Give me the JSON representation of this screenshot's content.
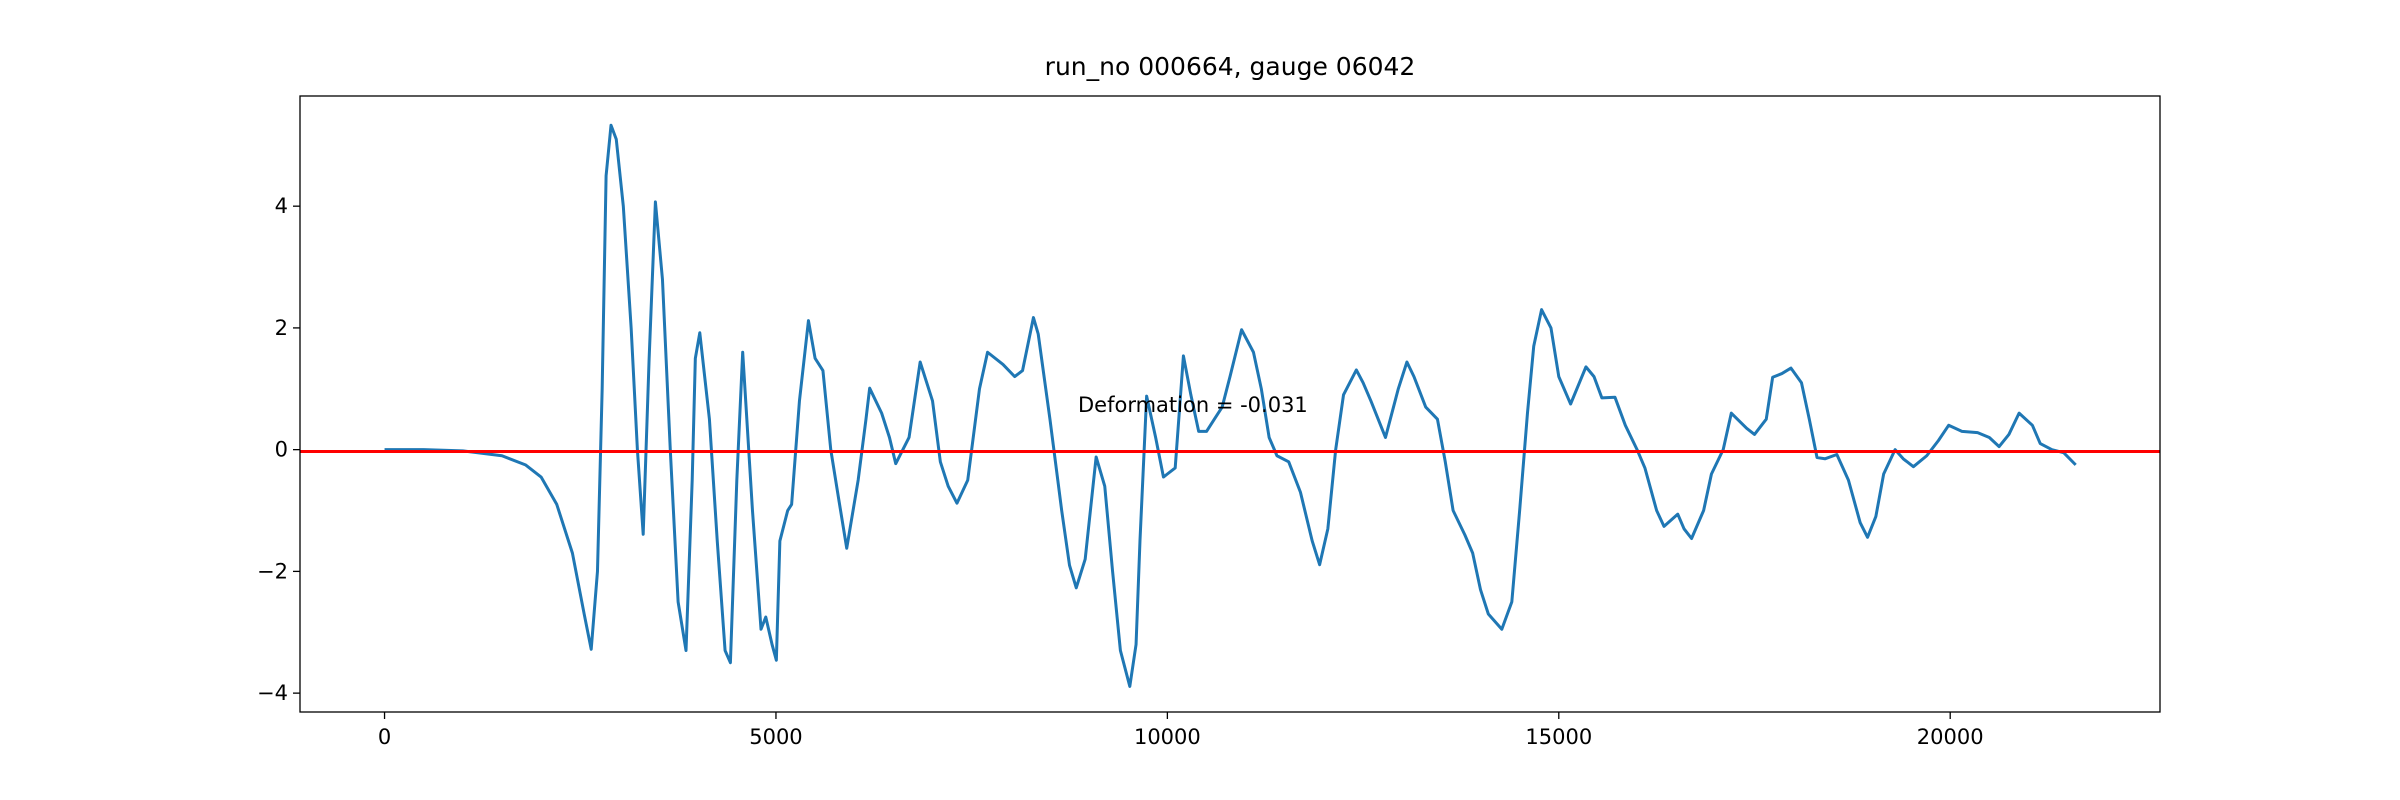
{
  "chart_data": {
    "type": "line",
    "title": "run_no 000664, gauge 06042",
    "annotation": "Deformation = -0.031",
    "hline": {
      "value": -0.031,
      "color": "#ff0000"
    },
    "xlim": [
      -1080,
      22680
    ],
    "ylim": [
      -4.31,
      5.81
    ],
    "xticks": [
      0,
      5000,
      10000,
      15000,
      20000
    ],
    "yticks": [
      {
        "value": -4,
        "label": "−4"
      },
      {
        "value": -2,
        "label": "−2"
      },
      0,
      2,
      4
    ],
    "x": [
      0,
      500,
      1000,
      1500,
      1800,
      2000,
      2200,
      2400,
      2550,
      2640,
      2720,
      2780,
      2830,
      2893,
      2960,
      3050,
      3150,
      3230,
      3304,
      3380,
      3460,
      3550,
      3650,
      3750,
      3851,
      3930,
      3970,
      4027,
      4150,
      4250,
      4350,
      4418,
      4500,
      4575,
      4700,
      4809,
      4870,
      4950,
      5005,
      5050,
      5150,
      5200,
      5300,
      5415,
      5500,
      5600,
      5700,
      5800,
      5904,
      6050,
      6150,
      6197,
      6350,
      6450,
      6530,
      6700,
      6842,
      7000,
      7100,
      7200,
      7312,
      7450,
      7600,
      7703,
      7900,
      8050,
      8150,
      8289,
      8350,
      8500,
      8650,
      8750,
      8836,
      8950,
      9000,
      9090,
      9200,
      9300,
      9400,
      9520,
      9600,
      9650,
      9735,
      9850,
      9950,
      10000,
      10100,
      10205,
      10300,
      10400,
      10500,
      10600,
      10700,
      10800,
      10948,
      11100,
      11200,
      11300,
      11400,
      11550,
      11700,
      11850,
      11945,
      12050,
      12150,
      12250,
      12414,
      12500,
      12600,
      12786,
      12950,
      13060,
      13150,
      13300,
      13450,
      13550,
      13650,
      13800,
      13900,
      14000,
      14100,
      14272,
      14400,
      14500,
      14600,
      14680,
      14780,
      14900,
      15000,
      15151,
      15347,
      15450,
      15550,
      15718,
      15850,
      16000,
      16100,
      16250,
      16344,
      16520,
      16600,
      16696,
      16850,
      16950,
      17100,
      17204,
      17400,
      17500,
      17650,
      17732,
      17850,
      17966,
      18100,
      18200,
      18299,
      18400,
      18552,
      18700,
      18850,
      18944,
      19050,
      19150,
      19296,
      19400,
      19530,
      19700,
      19850,
      19980,
      20150,
      20350,
      20500,
      20625,
      20750,
      20880,
      21050,
      21150,
      21300,
      21450,
      21603
    ],
    "series": [
      {
        "color": "#1f77b4",
        "values": [
          0,
          0,
          -0.02,
          -0.1,
          -0.25,
          -0.45,
          -0.9,
          -1.7,
          -2.7,
          -3.28,
          -2.0,
          1.0,
          4.5,
          5.33,
          5.1,
          4.0,
          2.0,
          0,
          -1.39,
          1.5,
          4.07,
          2.8,
          0,
          -2.5,
          -3.3,
          -0.5,
          1.5,
          1.92,
          0.5,
          -1.5,
          -3.3,
          -3.5,
          -0.5,
          1.6,
          -1.0,
          -2.95,
          -2.75,
          -3.2,
          -3.46,
          -1.5,
          -1.0,
          -0.9,
          0.8,
          2.12,
          1.5,
          1.3,
          0,
          -0.8,
          -1.62,
          -0.5,
          0.5,
          1.01,
          0.6,
          0.2,
          -0.23,
          0.2,
          1.44,
          0.8,
          -0.2,
          -0.6,
          -0.88,
          -0.5,
          1.0,
          1.6,
          1.4,
          1.2,
          1.3,
          2.17,
          1.9,
          0.5,
          -1.0,
          -1.9,
          -2.27,
          -1.8,
          -1.2,
          -0.12,
          -0.6,
          -2.0,
          -3.3,
          -3.89,
          -3.2,
          -1.5,
          0.88,
          0.2,
          -0.45,
          -0.4,
          -0.3,
          1.54,
          0.9,
          0.3,
          0.3,
          0.5,
          0.7,
          1.2,
          1.97,
          1.6,
          1.0,
          0.2,
          -0.1,
          -0.2,
          -0.7,
          -1.5,
          -1.89,
          -1.3,
          0,
          0.9,
          1.31,
          1.1,
          0.8,
          0.2,
          1.0,
          1.44,
          1.2,
          0.7,
          0.5,
          -0.2,
          -1.0,
          -1.4,
          -1.7,
          -2.3,
          -2.7,
          -2.95,
          -2.5,
          -1.0,
          0.6,
          1.7,
          2.3,
          2.0,
          1.2,
          0.75,
          1.36,
          1.2,
          0.85,
          0.86,
          0.4,
          0,
          -0.3,
          -1.0,
          -1.26,
          -1.06,
          -1.3,
          -1.46,
          -1.0,
          -0.4,
          0,
          0.6,
          0.35,
          0.25,
          0.5,
          1.19,
          1.25,
          1.34,
          1.1,
          0.5,
          -0.13,
          -0.15,
          -0.08,
          -0.5,
          -1.2,
          -1.44,
          -1.1,
          -0.4,
          0,
          -0.15,
          -0.28,
          -0.1,
          0.15,
          0.4,
          0.3,
          0.28,
          0.2,
          0.05,
          0.25,
          0.6,
          0.4,
          0.1,
          0,
          -0.05,
          -0.25
        ]
      }
    ]
  }
}
